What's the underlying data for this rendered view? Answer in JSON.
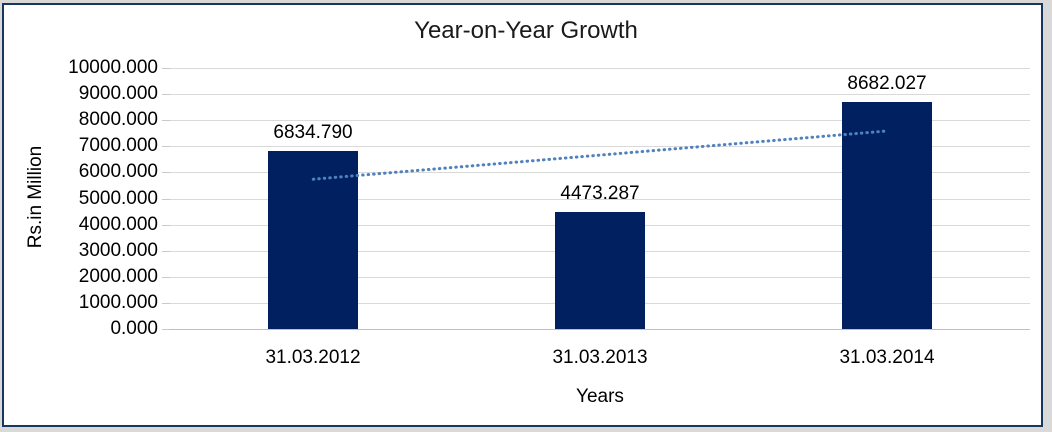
{
  "window": {
    "outer_background": "#d9d9d9",
    "frame_border_color": "#17375e",
    "plot_background": "#ffffff"
  },
  "chart_data": {
    "type": "bar",
    "title": "Year-on-Year Growth",
    "xlabel": "Years",
    "ylabel": "Rs.in Million",
    "categories": [
      "31.03.2012",
      "31.03.2013",
      "31.03.2014"
    ],
    "values": [
      6834.79,
      4473.287,
      8682.027
    ],
    "data_labels": [
      "6834.790",
      "4473.287",
      "8682.027"
    ],
    "ylim": [
      0,
      10000
    ],
    "ytick_step": 1000,
    "ytick_labels": [
      "0.000",
      "1000.000",
      "2000.000",
      "3000.000",
      "4000.000",
      "5000.000",
      "6000.000",
      "7000.000",
      "8000.000",
      "9000.000",
      "10000.000"
    ],
    "grid": "horizontal",
    "legend": "none",
    "bar_color": "#002060",
    "gridline_color": "#d9d9d9",
    "trendline": {
      "type": "linear",
      "style": "dotted",
      "color": "#4f81bd",
      "values": [
        5739.75,
        6663.368,
        7586.987
      ]
    }
  }
}
